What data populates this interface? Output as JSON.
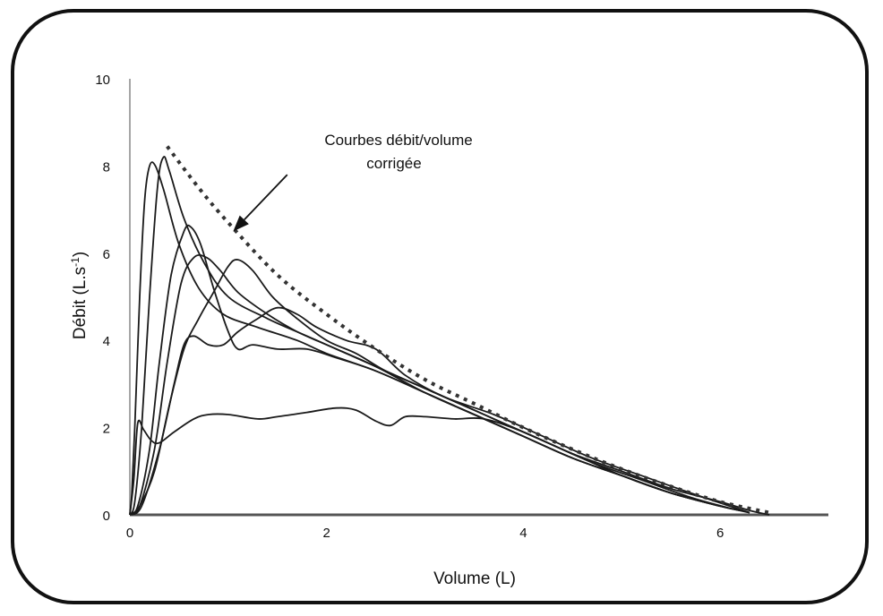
{
  "chart_data": {
    "type": "line",
    "xlabel": "Volume (L)",
    "ylabel_main": "Débit (L.s",
    "ylabel_sup": "-1",
    "ylabel_close": ")",
    "xlim": [
      0,
      7.1
    ],
    "ylim": [
      0,
      10
    ],
    "x_ticks": [
      0,
      2,
      4,
      6
    ],
    "y_ticks": [
      0,
      2,
      4,
      6,
      8,
      10
    ],
    "grid": false,
    "annotation": {
      "lines": [
        "Courbes débit/volume",
        "corrigée"
      ],
      "points_to": [
        1.05,
        6.5
      ],
      "from": [
        1.6,
        7.8
      ]
    },
    "series": [
      {
        "style": "solid",
        "points": [
          [
            0,
            0
          ],
          [
            0.02,
            0.5
          ],
          [
            0.05,
            2.0
          ],
          [
            0.1,
            5.0
          ],
          [
            0.15,
            7.2
          ],
          [
            0.2,
            8.0
          ],
          [
            0.26,
            8.0
          ],
          [
            0.35,
            7.4
          ],
          [
            0.5,
            6.2
          ],
          [
            0.7,
            5.2
          ],
          [
            0.95,
            4.6
          ],
          [
            1.3,
            4.3
          ],
          [
            1.7,
            4.0
          ],
          [
            2.0,
            3.7
          ],
          [
            2.5,
            3.3
          ],
          [
            3.0,
            2.8
          ],
          [
            3.5,
            2.3
          ],
          [
            4.0,
            1.8
          ],
          [
            4.5,
            1.3
          ],
          [
            5.0,
            0.9
          ],
          [
            5.5,
            0.5
          ],
          [
            6.0,
            0.2
          ],
          [
            6.2,
            0.1
          ]
        ]
      },
      {
        "style": "solid",
        "points": [
          [
            0,
            0
          ],
          [
            0.05,
            0.3
          ],
          [
            0.12,
            2.0
          ],
          [
            0.2,
            5.0
          ],
          [
            0.28,
            7.5
          ],
          [
            0.34,
            8.2
          ],
          [
            0.4,
            7.9
          ],
          [
            0.55,
            6.8
          ],
          [
            0.75,
            5.8
          ],
          [
            1.0,
            5.0
          ],
          [
            1.4,
            4.5
          ],
          [
            1.8,
            4.1
          ],
          [
            2.2,
            3.7
          ],
          [
            2.7,
            3.2
          ],
          [
            3.2,
            2.7
          ],
          [
            3.7,
            2.2
          ],
          [
            4.2,
            1.7
          ],
          [
            4.7,
            1.2
          ],
          [
            5.2,
            0.8
          ],
          [
            5.7,
            0.4
          ],
          [
            6.1,
            0.15
          ]
        ]
      },
      {
        "style": "solid",
        "points": [
          [
            0,
            0
          ],
          [
            0.08,
            0.2
          ],
          [
            0.2,
            1.5
          ],
          [
            0.3,
            3.5
          ],
          [
            0.42,
            5.5
          ],
          [
            0.55,
            6.5
          ],
          [
            0.62,
            6.6
          ],
          [
            0.72,
            6.2
          ],
          [
            0.85,
            5.2
          ],
          [
            1.0,
            4.2
          ],
          [
            1.1,
            3.8
          ],
          [
            1.25,
            3.9
          ],
          [
            1.5,
            3.8
          ],
          [
            1.8,
            3.8
          ],
          [
            2.1,
            3.6
          ],
          [
            2.5,
            3.3
          ],
          [
            3.0,
            2.8
          ],
          [
            3.5,
            2.3
          ],
          [
            4.0,
            1.8
          ],
          [
            4.5,
            1.3
          ],
          [
            5.0,
            0.9
          ],
          [
            5.5,
            0.5
          ],
          [
            6.0,
            0.2
          ]
        ]
      },
      {
        "style": "solid",
        "points": [
          [
            0,
            0
          ],
          [
            0.1,
            0.2
          ],
          [
            0.25,
            1.5
          ],
          [
            0.38,
            3.5
          ],
          [
            0.52,
            5.3
          ],
          [
            0.65,
            5.9
          ],
          [
            0.78,
            5.9
          ],
          [
            0.92,
            5.6
          ],
          [
            1.1,
            5.1
          ],
          [
            1.4,
            4.6
          ],
          [
            1.7,
            4.2
          ],
          [
            2.0,
            3.9
          ],
          [
            2.5,
            3.4
          ],
          [
            3.0,
            2.8
          ],
          [
            3.5,
            2.3
          ],
          [
            4.0,
            1.8
          ],
          [
            4.5,
            1.3
          ],
          [
            5.0,
            0.9
          ],
          [
            5.5,
            0.5
          ],
          [
            6.0,
            0.2
          ],
          [
            6.2,
            0.1
          ]
        ]
      },
      {
        "style": "solid",
        "points": [
          [
            0,
            0
          ],
          [
            0.1,
            0.2
          ],
          [
            0.25,
            1.0
          ],
          [
            0.4,
            2.5
          ],
          [
            0.55,
            3.8
          ],
          [
            0.7,
            4.5
          ],
          [
            0.85,
            5.1
          ],
          [
            1.0,
            5.7
          ],
          [
            1.1,
            5.85
          ],
          [
            1.25,
            5.6
          ],
          [
            1.45,
            5.0
          ],
          [
            1.7,
            4.5
          ],
          [
            2.0,
            4.0
          ],
          [
            2.3,
            3.7
          ],
          [
            2.6,
            3.3
          ],
          [
            3.0,
            2.9
          ],
          [
            3.5,
            2.4
          ],
          [
            4.0,
            1.9
          ],
          [
            4.5,
            1.4
          ],
          [
            5.0,
            0.9
          ],
          [
            5.5,
            0.5
          ],
          [
            6.0,
            0.2
          ],
          [
            6.3,
            0.05
          ]
        ]
      },
      {
        "style": "solid",
        "points": [
          [
            0,
            0
          ],
          [
            0.12,
            0.2
          ],
          [
            0.3,
            1.5
          ],
          [
            0.45,
            3.0
          ],
          [
            0.55,
            3.9
          ],
          [
            0.65,
            4.1
          ],
          [
            0.8,
            3.9
          ],
          [
            0.95,
            3.9
          ],
          [
            1.1,
            4.2
          ],
          [
            1.3,
            4.5
          ],
          [
            1.5,
            4.75
          ],
          [
            1.7,
            4.6
          ],
          [
            1.9,
            4.3
          ],
          [
            2.2,
            4.0
          ],
          [
            2.5,
            3.8
          ],
          [
            2.8,
            3.2
          ],
          [
            3.2,
            2.7
          ],
          [
            3.7,
            2.3
          ],
          [
            4.2,
            1.8
          ],
          [
            4.7,
            1.3
          ],
          [
            5.2,
            0.9
          ],
          [
            5.7,
            0.5
          ],
          [
            6.1,
            0.2
          ],
          [
            6.3,
            0.05
          ]
        ]
      },
      {
        "style": "solid",
        "points": [
          [
            0,
            0
          ],
          [
            0.04,
            0.8
          ],
          [
            0.08,
            2.1
          ],
          [
            0.14,
            1.95
          ],
          [
            0.22,
            1.7
          ],
          [
            0.3,
            1.65
          ],
          [
            0.45,
            1.9
          ],
          [
            0.65,
            2.2
          ],
          [
            0.8,
            2.3
          ],
          [
            1.0,
            2.3
          ],
          [
            1.3,
            2.2
          ],
          [
            1.5,
            2.25
          ],
          [
            1.8,
            2.35
          ],
          [
            2.1,
            2.45
          ],
          [
            2.3,
            2.4
          ],
          [
            2.5,
            2.15
          ],
          [
            2.65,
            2.05
          ],
          [
            2.8,
            2.25
          ],
          [
            3.0,
            2.25
          ],
          [
            3.3,
            2.2
          ],
          [
            3.6,
            2.2
          ],
          [
            4.0,
            1.9
          ],
          [
            4.5,
            1.4
          ],
          [
            5.0,
            1.0
          ],
          [
            5.5,
            0.6
          ],
          [
            6.0,
            0.3
          ],
          [
            6.3,
            0.1
          ],
          [
            6.5,
            0
          ]
        ]
      },
      {
        "style": "dotted",
        "points": [
          [
            0.38,
            8.45
          ],
          [
            0.7,
            7.5
          ],
          [
            1.0,
            6.7
          ],
          [
            1.5,
            5.5
          ],
          [
            2.0,
            4.6
          ],
          [
            2.5,
            3.8
          ],
          [
            3.0,
            3.1
          ],
          [
            3.5,
            2.55
          ],
          [
            4.0,
            2.0
          ],
          [
            4.5,
            1.5
          ],
          [
            5.0,
            1.05
          ],
          [
            5.5,
            0.65
          ],
          [
            6.0,
            0.3
          ],
          [
            6.5,
            0.05
          ]
        ]
      }
    ]
  }
}
